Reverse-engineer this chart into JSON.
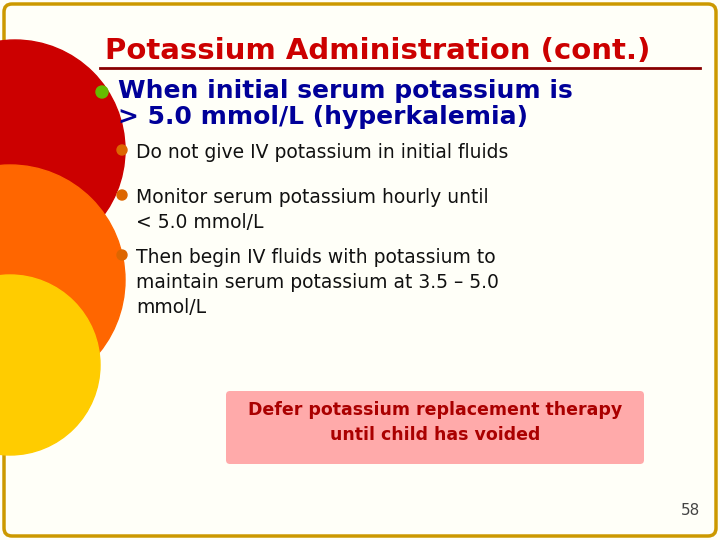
{
  "title": "Potassium Administration (cont.)",
  "title_color": "#cc0000",
  "title_fontsize": 21,
  "background_color": "#fffff8",
  "border_color": "#cc9900",
  "main_bullet_color": "#66bb00",
  "main_bullet_text_line1": "When initial serum potassium is",
  "main_bullet_text_line2": "> 5.0 mmol/L (hyperkalemia)",
  "main_bullet_text_color": "#000099",
  "sub_bullets": [
    "Do not give IV potassium in initial fluids",
    "Monitor serum potassium hourly until\n< 5.0 mmol/L",
    "Then begin IV fluids with potassium to\nmaintain serum potassium at 3.5 – 5.0\nmmol/L"
  ],
  "sub_bullet_color": "#dd6600",
  "sub_bullet_text_color": "#111111",
  "sub_bullet_fontsize": 13.5,
  "note_text": "Defer potassium replacement therapy\nuntil child has voided",
  "note_bg_color": "#ffaaaa",
  "note_text_color": "#aa0000",
  "note_fontsize": 12.5,
  "page_number": "58",
  "decoration_colors": [
    "#cc0000",
    "#ff6600",
    "#ffcc00"
  ],
  "line_color": "#880000"
}
